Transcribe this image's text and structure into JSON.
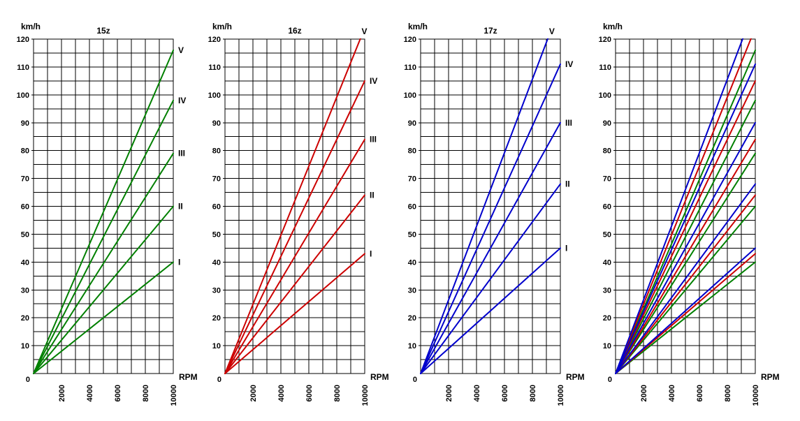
{
  "page": {
    "background": "#ffffff"
  },
  "colors": {
    "sprocket_15z": "#008000",
    "sprocket_16z": "#cc0000",
    "sprocket_17z": "#0000cc",
    "grid": "#000000",
    "text": "#000000"
  },
  "axes": {
    "ylabel": "km/h",
    "xlabel": "RPM",
    "origin_label": "0",
    "y_ticks": [
      0,
      10,
      20,
      30,
      40,
      50,
      60,
      70,
      80,
      90,
      100,
      110,
      120
    ],
    "x_ticks": [
      2000,
      4000,
      6000,
      8000,
      10000
    ],
    "xlim": [
      0,
      10000
    ],
    "ylim": [
      0,
      120
    ],
    "x_grid_step": 1000,
    "y_grid_step": 5,
    "grid": true,
    "x_tick_labels_vertical": true
  },
  "chart_data": [
    {
      "type": "line",
      "title": "15z",
      "color": "#008000",
      "series": [
        {
          "name": "15z-I",
          "label": "I",
          "color": "#008000",
          "x": [
            0,
            10000
          ],
          "y": [
            0,
            40
          ]
        },
        {
          "name": "15z-II",
          "label": "II",
          "color": "#008000",
          "x": [
            0,
            10000
          ],
          "y": [
            0,
            60
          ]
        },
        {
          "name": "15z-III",
          "label": "III",
          "color": "#008000",
          "x": [
            0,
            10000
          ],
          "y": [
            0,
            79
          ]
        },
        {
          "name": "15z-IV",
          "label": "IV",
          "color": "#008000",
          "x": [
            0,
            10000
          ],
          "y": [
            0,
            98
          ]
        },
        {
          "name": "15z-V",
          "label": "V",
          "color": "#008000",
          "x": [
            0,
            10000
          ],
          "y": [
            0,
            116
          ]
        }
      ]
    },
    {
      "type": "line",
      "title": "16z",
      "color": "#cc0000",
      "series": [
        {
          "name": "16z-I",
          "label": "I",
          "color": "#cc0000",
          "x": [
            0,
            10000
          ],
          "y": [
            0,
            43
          ]
        },
        {
          "name": "16z-II",
          "label": "II",
          "color": "#cc0000",
          "x": [
            0,
            10000
          ],
          "y": [
            0,
            64
          ]
        },
        {
          "name": "16z-III",
          "label": "III",
          "color": "#cc0000",
          "x": [
            0,
            10000
          ],
          "y": [
            0,
            84
          ]
        },
        {
          "name": "16z-IV",
          "label": "IV",
          "color": "#cc0000",
          "x": [
            0,
            10000
          ],
          "y": [
            0,
            105
          ]
        },
        {
          "name": "16z-V",
          "label": "V",
          "color": "#cc0000",
          "x": [
            0,
            10000
          ],
          "y": [
            0,
            124
          ]
        }
      ]
    },
    {
      "type": "line",
      "title": "17z",
      "color": "#0000cc",
      "series": [
        {
          "name": "17z-I",
          "label": "I",
          "color": "#0000cc",
          "x": [
            0,
            10000
          ],
          "y": [
            0,
            45
          ]
        },
        {
          "name": "17z-II",
          "label": "II",
          "color": "#0000cc",
          "x": [
            0,
            10000
          ],
          "y": [
            0,
            68
          ]
        },
        {
          "name": "17z-III",
          "label": "III",
          "color": "#0000cc",
          "x": [
            0,
            10000
          ],
          "y": [
            0,
            90
          ]
        },
        {
          "name": "17z-IV",
          "label": "IV",
          "color": "#0000cc",
          "x": [
            0,
            10000
          ],
          "y": [
            0,
            111
          ]
        },
        {
          "name": "17z-V",
          "label": "V",
          "color": "#0000cc",
          "x": [
            0,
            10000
          ],
          "y": [
            0,
            132
          ]
        }
      ]
    },
    {
      "type": "line",
      "title": "",
      "color": "#000000",
      "series": [
        {
          "name": "15z-I",
          "label": "",
          "color": "#008000",
          "x": [
            0,
            10000
          ],
          "y": [
            0,
            40
          ]
        },
        {
          "name": "15z-II",
          "label": "",
          "color": "#008000",
          "x": [
            0,
            10000
          ],
          "y": [
            0,
            60
          ]
        },
        {
          "name": "15z-III",
          "label": "",
          "color": "#008000",
          "x": [
            0,
            10000
          ],
          "y": [
            0,
            79
          ]
        },
        {
          "name": "15z-IV",
          "label": "",
          "color": "#008000",
          "x": [
            0,
            10000
          ],
          "y": [
            0,
            98
          ]
        },
        {
          "name": "15z-V",
          "label": "",
          "color": "#008000",
          "x": [
            0,
            10000
          ],
          "y": [
            0,
            116
          ]
        },
        {
          "name": "16z-I",
          "label": "",
          "color": "#cc0000",
          "x": [
            0,
            10000
          ],
          "y": [
            0,
            43
          ]
        },
        {
          "name": "16z-II",
          "label": "",
          "color": "#cc0000",
          "x": [
            0,
            10000
          ],
          "y": [
            0,
            64
          ]
        },
        {
          "name": "16z-III",
          "label": "",
          "color": "#cc0000",
          "x": [
            0,
            10000
          ],
          "y": [
            0,
            84
          ]
        },
        {
          "name": "16z-IV",
          "label": "",
          "color": "#cc0000",
          "x": [
            0,
            10000
          ],
          "y": [
            0,
            105
          ]
        },
        {
          "name": "16z-V",
          "label": "",
          "color": "#cc0000",
          "x": [
            0,
            10000
          ],
          "y": [
            0,
            124
          ]
        },
        {
          "name": "17z-I",
          "label": "",
          "color": "#0000cc",
          "x": [
            0,
            10000
          ],
          "y": [
            0,
            45
          ]
        },
        {
          "name": "17z-II",
          "label": "",
          "color": "#0000cc",
          "x": [
            0,
            10000
          ],
          "y": [
            0,
            68
          ]
        },
        {
          "name": "17z-III",
          "label": "",
          "color": "#0000cc",
          "x": [
            0,
            10000
          ],
          "y": [
            0,
            90
          ]
        },
        {
          "name": "17z-IV",
          "label": "",
          "color": "#0000cc",
          "x": [
            0,
            10000
          ],
          "y": [
            0,
            111
          ]
        },
        {
          "name": "17z-V",
          "label": "",
          "color": "#0000cc",
          "x": [
            0,
            10000
          ],
          "y": [
            0,
            132
          ]
        }
      ]
    }
  ]
}
